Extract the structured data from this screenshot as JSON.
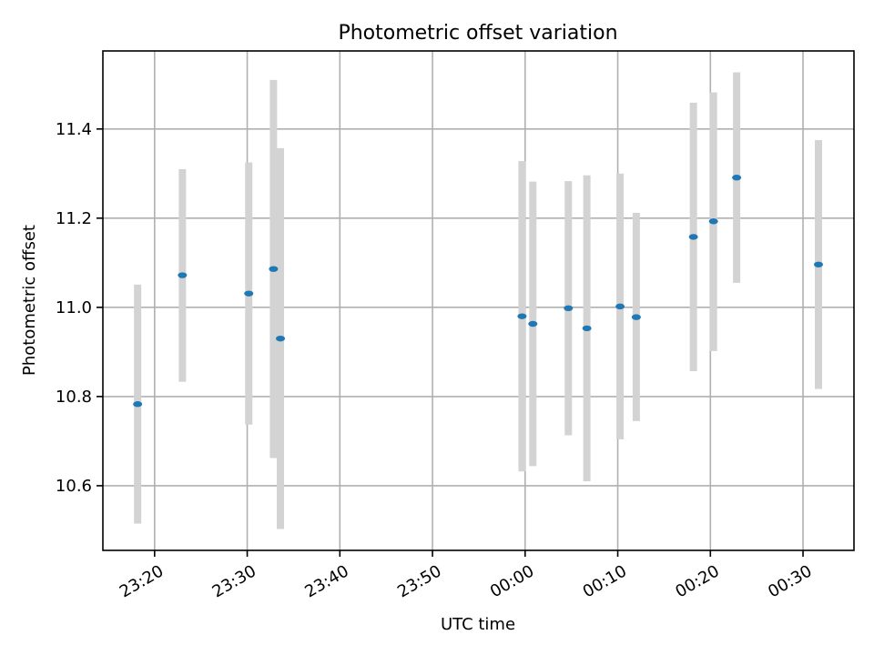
{
  "chart_data": {
    "type": "scatter",
    "title": "Photometric offset variation",
    "xlabel": "UTC time",
    "ylabel": "Photometric offset",
    "grid": true,
    "x_ticks": [
      "23:20",
      "23:30",
      "23:40",
      "23:50",
      "00:00",
      "00:10",
      "00:20",
      "00:30"
    ],
    "y_ticks": [
      "10.6",
      "10.8",
      "11.0",
      "11.2",
      "11.4"
    ],
    "xlim": [
      "23:14:25",
      "00:35:30"
    ],
    "ylim": [
      10.455,
      11.575
    ],
    "colors": {
      "point": "#1f77b4",
      "errorbar": "#d3d3d3"
    },
    "series": [
      {
        "points": [
          {
            "x": "23:18:10",
            "y": 10.783,
            "low": 10.515,
            "high": 11.051
          },
          {
            "x": "23:23:00",
            "y": 11.072,
            "low": 10.833,
            "high": 11.31
          },
          {
            "x": "23:30:10",
            "y": 11.031,
            "low": 10.737,
            "high": 11.325
          },
          {
            "x": "23:32:50",
            "y": 11.086,
            "low": 10.662,
            "high": 11.51
          },
          {
            "x": "23:33:35",
            "y": 10.93,
            "low": 10.503,
            "high": 11.357
          },
          {
            "x": "23:59:40",
            "y": 10.98,
            "low": 10.632,
            "high": 11.328
          },
          {
            "x": "00:00:50",
            "y": 10.963,
            "low": 10.644,
            "high": 11.282
          },
          {
            "x": "00:04:40",
            "y": 10.998,
            "low": 10.713,
            "high": 11.283
          },
          {
            "x": "00:06:40",
            "y": 10.953,
            "low": 10.61,
            "high": 11.296
          },
          {
            "x": "00:10:15",
            "y": 11.002,
            "low": 10.704,
            "high": 11.3
          },
          {
            "x": "00:12:00",
            "y": 10.978,
            "low": 10.745,
            "high": 11.212
          },
          {
            "x": "00:18:10",
            "y": 11.158,
            "low": 10.857,
            "high": 11.459
          },
          {
            "x": "00:20:20",
            "y": 11.193,
            "low": 10.902,
            "high": 11.482
          },
          {
            "x": "00:22:50",
            "y": 11.291,
            "low": 11.055,
            "high": 11.527
          },
          {
            "x": "00:31:40",
            "y": 11.096,
            "low": 10.817,
            "high": 11.375
          }
        ]
      }
    ]
  }
}
